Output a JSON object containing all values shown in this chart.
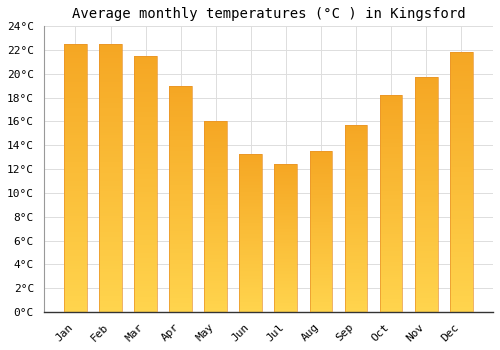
{
  "title": "Average monthly temperatures (°C ) in Kingsford",
  "months": [
    "Jan",
    "Feb",
    "Mar",
    "Apr",
    "May",
    "Jun",
    "Jul",
    "Aug",
    "Sep",
    "Oct",
    "Nov",
    "Dec"
  ],
  "values": [
    22.5,
    22.5,
    21.5,
    19.0,
    16.0,
    13.3,
    12.4,
    13.5,
    15.7,
    18.2,
    19.7,
    21.8
  ],
  "bar_color_top": "#F5A623",
  "bar_color_bottom": "#FFD44D",
  "bar_edge_color": "#E8922A",
  "ylim": [
    0,
    24
  ],
  "yticks": [
    0,
    2,
    4,
    6,
    8,
    10,
    12,
    14,
    16,
    18,
    20,
    22,
    24
  ],
  "background_color": "#FFFFFF",
  "plot_bg_color": "#FFFFFF",
  "grid_color": "#DDDDDD",
  "title_fontsize": 10,
  "tick_fontsize": 8,
  "font_family": "monospace",
  "bar_width": 0.65
}
